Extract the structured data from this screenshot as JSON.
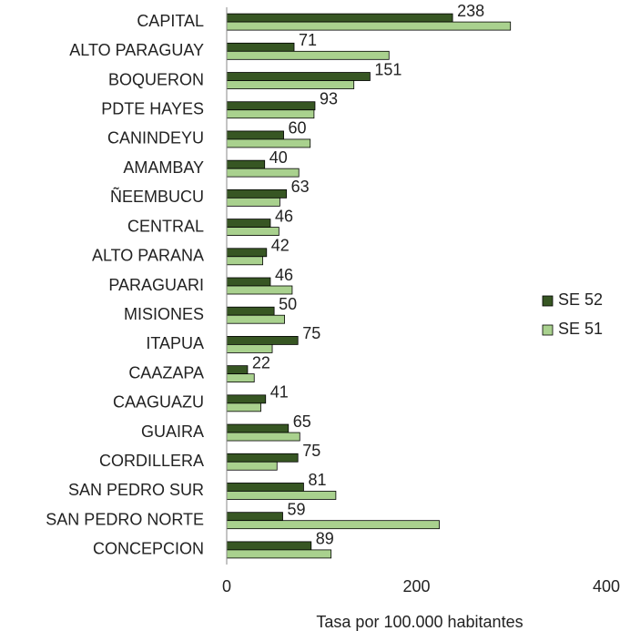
{
  "chart_data": {
    "type": "bar",
    "orientation": "horizontal",
    "x_label": "Tasa por 100.000 habitantes",
    "categories": [
      "CAPITAL",
      "ALTO PARAGUAY",
      "BOQUERON",
      "PDTE HAYES",
      "CANINDEYU",
      "AMAMBAY",
      "ÑEEMBUCU",
      "CENTRAL",
      "ALTO PARANA",
      "PARAGUARI",
      "MISIONES",
      "ITAPUA",
      "CAAZAPA",
      "CAAGUAZU",
      "GUAIRA",
      "CORDILLERA",
      "SAN PEDRO SUR",
      "SAN PEDRO NORTE",
      "CONCEPCION"
    ],
    "series": [
      {
        "name": "SE 52",
        "color": "#375623",
        "values": [
          238,
          71,
          151,
          93,
          60,
          40,
          63,
          46,
          42,
          46,
          50,
          75,
          22,
          41,
          65,
          75,
          81,
          59,
          89
        ],
        "show_labels": true
      },
      {
        "name": "SE 51",
        "color": "#a9d18e",
        "values": [
          299,
          171,
          134,
          92,
          88,
          76,
          56,
          55,
          38,
          69,
          61,
          48,
          29,
          36,
          77,
          53,
          115,
          224,
          110
        ],
        "show_labels": false
      }
    ],
    "xlim": [
      0,
      400
    ],
    "xticks": [
      0,
      200,
      400
    ],
    "legend": "right"
  }
}
